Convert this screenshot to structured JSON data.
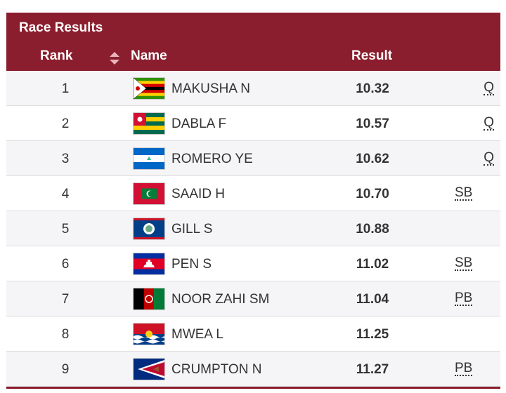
{
  "header": {
    "title": "Race Results",
    "columns": [
      "Rank",
      "Name",
      "Result"
    ]
  },
  "table": {
    "rows": [
      {
        "rank": "1",
        "name": "MAKUSHA N",
        "result": "10.32",
        "note": "Q"
      },
      {
        "rank": "2",
        "name": "DABLA F",
        "result": "10.57",
        "note": "Q"
      },
      {
        "rank": "3",
        "name": "ROMERO YE",
        "result": "10.62",
        "note": "Q"
      },
      {
        "rank": "4",
        "name": "SAAID H",
        "result": "10.70",
        "note": "SB"
      },
      {
        "rank": "5",
        "name": "GILL S",
        "result": "10.88"
      },
      {
        "rank": "6",
        "name": "PEN S",
        "result": "11.02",
        "note": "SB"
      },
      {
        "rank": "7",
        "name": "NOOR ZAHI SM",
        "result": "11.04",
        "note": "PB"
      },
      {
        "rank": "8",
        "name": "MWEA L",
        "result": "11.25"
      },
      {
        "rank": "9",
        "name": "CRUMPTON N",
        "result": "11.27",
        "note": "PB"
      }
    ]
  }
}
